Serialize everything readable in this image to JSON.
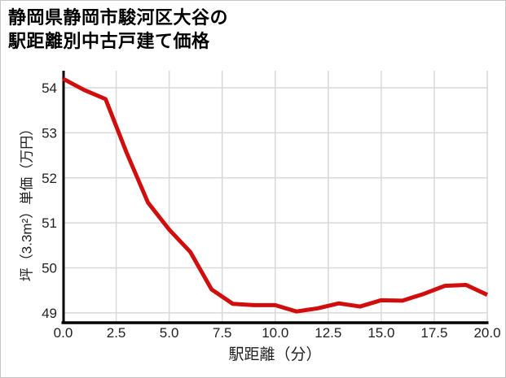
{
  "page": {
    "title_line1": "静岡県静岡市駿河区大谷の",
    "title_line2": "駅距離別中古戸建て価格"
  },
  "chart_data": {
    "type": "line",
    "title": "静岡県静岡市駿河区大谷の駅距離別中古戸建て価格",
    "xlabel": "駅距離（分）",
    "ylabel": "坪（3.3m²）単価（万円）",
    "x": [
      0,
      1,
      2,
      3,
      4,
      5,
      6,
      7,
      8,
      9,
      10,
      11,
      12,
      13,
      14,
      15,
      16,
      17,
      18,
      19,
      20
    ],
    "y": [
      54.2,
      53.95,
      53.75,
      52.55,
      51.45,
      50.85,
      50.35,
      49.52,
      49.2,
      49.17,
      49.17,
      49.03,
      49.1,
      49.21,
      49.14,
      49.28,
      49.27,
      49.42,
      49.6,
      49.62,
      49.4
    ],
    "x_tick_values": [
      0,
      2.5,
      5,
      7.5,
      10,
      12.5,
      15,
      17.5,
      20
    ],
    "x_tick_labels": [
      "0.0",
      "2.5",
      "5.0",
      "7.5",
      "10.0",
      "12.5",
      "15.0",
      "17.5",
      "20.0"
    ],
    "y_tick_values": [
      49,
      50,
      51,
      52,
      53,
      54
    ],
    "y_tick_labels": [
      "49",
      "50",
      "51",
      "52",
      "53",
      "54"
    ],
    "xlim": [
      0,
      20
    ],
    "ylim": [
      48.78,
      54.38
    ],
    "grid": true,
    "legend": false,
    "line_color": "#d10e0e",
    "grid_color": "#d9d9d9",
    "axis_color": "#000000",
    "tick_text_color": "#1f1f1f"
  }
}
